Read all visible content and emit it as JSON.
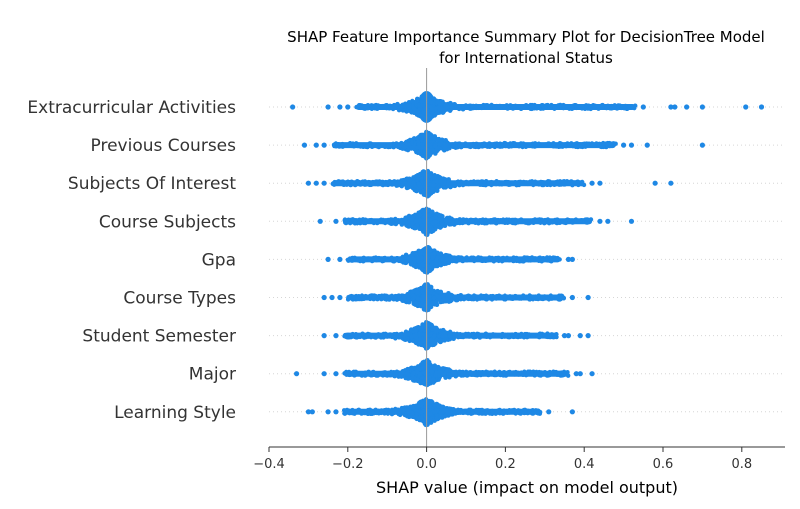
{
  "chart_data": {
    "type": "scatter",
    "title_lines": [
      "SHAP Feature Importance Summary Plot for DecisionTree Model",
      "for International Status"
    ],
    "xlabel": "SHAP value (impact on model output)",
    "ylabel": "",
    "xlim": [
      -0.4,
      0.9
    ],
    "x_ticks": [
      -0.4,
      -0.2,
      0.0,
      0.2,
      0.4,
      0.6,
      0.8
    ],
    "x_tick_labels": [
      "−0.4",
      "−0.2",
      "0.0",
      "0.2",
      "0.4",
      "0.6",
      "0.8"
    ],
    "grid": false,
    "point_color": "#1e88e5",
    "features": [
      {
        "name": "Extracurricular Activities",
        "min": -0.34,
        "max": 0.85,
        "outliers": [
          -0.34,
          -0.25,
          -0.22,
          -0.2,
          0.55,
          0.62,
          0.63,
          0.66,
          0.7,
          0.81,
          0.85
        ]
      },
      {
        "name": "Previous Courses",
        "min": -0.31,
        "max": 0.7,
        "outliers": [
          -0.31,
          -0.28,
          -0.26,
          0.5,
          0.52,
          0.56,
          0.7
        ]
      },
      {
        "name": "Subjects Of Interest",
        "min": -0.3,
        "max": 0.62,
        "outliers": [
          -0.3,
          -0.28,
          -0.26,
          0.42,
          0.44,
          0.58,
          0.62
        ]
      },
      {
        "name": "Course Subjects",
        "min": -0.27,
        "max": 0.52,
        "outliers": [
          -0.27,
          -0.23,
          0.44,
          0.46,
          0.52
        ]
      },
      {
        "name": "Gpa",
        "min": -0.25,
        "max": 0.37,
        "outliers": [
          -0.25,
          -0.22,
          0.36,
          0.37
        ]
      },
      {
        "name": "Course Types",
        "min": -0.26,
        "max": 0.41,
        "outliers": [
          -0.26,
          -0.24,
          -0.22,
          0.37,
          0.41
        ]
      },
      {
        "name": "Student Semester",
        "min": -0.26,
        "max": 0.41,
        "outliers": [
          -0.26,
          -0.23,
          0.35,
          0.36,
          0.39,
          0.41
        ]
      },
      {
        "name": "Major",
        "min": -0.33,
        "max": 0.42,
        "outliers": [
          -0.33,
          -0.26,
          -0.23,
          0.38,
          0.39,
          0.42
        ]
      },
      {
        "name": "Learning Style",
        "min": -0.3,
        "max": 0.37,
        "outliers": [
          -0.3,
          -0.29,
          -0.25,
          -0.23,
          0.31,
          0.37
        ]
      }
    ]
  }
}
